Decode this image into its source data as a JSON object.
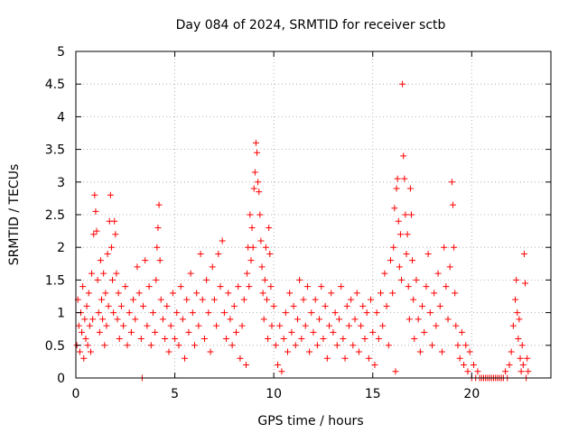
{
  "chart_data": {
    "type": "scatter",
    "title": "Day 084 of 2024, SRMTID for receiver sctb",
    "xlabel": "GPS time / hours",
    "ylabel": "SRMTID / TECUs",
    "xlim": [
      0,
      24
    ],
    "ylim": [
      0,
      5
    ],
    "xticks": [
      0,
      5,
      10,
      15,
      20
    ],
    "yticks": [
      0,
      0.5,
      1,
      1.5,
      2,
      2.5,
      3,
      3.5,
      4,
      4.5,
      5
    ],
    "xtick_labels": [
      "0",
      "5",
      "10",
      "15",
      "20"
    ],
    "ytick_labels": [
      "0",
      "0.5",
      "1",
      "1.5",
      "2",
      "2.5",
      "3",
      "3.5",
      "4",
      "4.5",
      "5"
    ],
    "grid": true,
    "marker": "plus",
    "color": "#ff0000",
    "series": [
      {
        "name": "SRMTID",
        "points": [
          [
            0.05,
            0.5
          ],
          [
            0.1,
            1.2
          ],
          [
            0.15,
            0.8
          ],
          [
            0.2,
            0.4
          ],
          [
            0.25,
            1.0
          ],
          [
            0.3,
            0.7
          ],
          [
            0.35,
            1.4
          ],
          [
            0.4,
            0.3
          ],
          [
            0.45,
            0.9
          ],
          [
            0.5,
            0.6
          ],
          [
            0.55,
            1.1
          ],
          [
            0.6,
            0.5
          ],
          [
            0.65,
            1.3
          ],
          [
            0.7,
            0.8
          ],
          [
            0.75,
            0.4
          ],
          [
            0.8,
            1.6
          ],
          [
            0.85,
            0.9
          ],
          [
            0.9,
            2.2
          ],
          [
            0.95,
            2.8
          ],
          [
            1.0,
            2.55
          ],
          [
            1.05,
            2.25
          ],
          [
            1.1,
            1.5
          ],
          [
            1.15,
            1.0
          ],
          [
            1.2,
            0.7
          ],
          [
            1.25,
            1.8
          ],
          [
            1.3,
            1.2
          ],
          [
            1.35,
            0.9
          ],
          [
            1.4,
            1.6
          ],
          [
            1.45,
            0.5
          ],
          [
            1.5,
            1.3
          ],
          [
            1.55,
            0.8
          ],
          [
            1.6,
            1.9
          ],
          [
            1.65,
            1.1
          ],
          [
            1.7,
            2.4
          ],
          [
            1.75,
            2.8
          ],
          [
            1.8,
            2.0
          ],
          [
            1.85,
            1.5
          ],
          [
            1.9,
            1.0
          ],
          [
            1.95,
            2.4
          ],
          [
            2.0,
            2.2
          ],
          [
            2.05,
            1.6
          ],
          [
            2.1,
            0.9
          ],
          [
            2.15,
            1.3
          ],
          [
            2.2,
            0.6
          ],
          [
            2.3,
            1.1
          ],
          [
            2.4,
            0.8
          ],
          [
            2.5,
            1.4
          ],
          [
            2.6,
            0.5
          ],
          [
            2.7,
            1.0
          ],
          [
            2.8,
            0.7
          ],
          [
            2.9,
            1.2
          ],
          [
            3.0,
            0.9
          ],
          [
            3.1,
            1.7
          ],
          [
            3.2,
            1.3
          ],
          [
            3.3,
            0.6
          ],
          [
            3.35,
            0.0
          ],
          [
            3.4,
            1.1
          ],
          [
            3.5,
            1.8
          ],
          [
            3.6,
            0.8
          ],
          [
            3.7,
            1.4
          ],
          [
            3.8,
            0.5
          ],
          [
            3.9,
            1.0
          ],
          [
            4.0,
            0.7
          ],
          [
            4.05,
            1.5
          ],
          [
            4.1,
            2.0
          ],
          [
            4.15,
            2.3
          ],
          [
            4.2,
            2.65
          ],
          [
            4.25,
            1.8
          ],
          [
            4.3,
            1.2
          ],
          [
            4.4,
            0.9
          ],
          [
            4.5,
            0.6
          ],
          [
            4.6,
            1.1
          ],
          [
            4.7,
            0.4
          ],
          [
            4.8,
            0.8
          ],
          [
            4.9,
            1.3
          ],
          [
            5.0,
            0.6
          ],
          [
            5.1,
            1.0
          ],
          [
            5.2,
            0.5
          ],
          [
            5.3,
            1.4
          ],
          [
            5.4,
            0.9
          ],
          [
            5.5,
            0.3
          ],
          [
            5.6,
            1.2
          ],
          [
            5.7,
            0.7
          ],
          [
            5.8,
            1.6
          ],
          [
            5.9,
            1.0
          ],
          [
            6.0,
            0.5
          ],
          [
            6.1,
            1.3
          ],
          [
            6.2,
            0.8
          ],
          [
            6.3,
            1.9
          ],
          [
            6.4,
            1.2
          ],
          [
            6.5,
            0.6
          ],
          [
            6.6,
            1.5
          ],
          [
            6.7,
            1.0
          ],
          [
            6.8,
            0.4
          ],
          [
            6.9,
            1.7
          ],
          [
            7.0,
            1.2
          ],
          [
            7.1,
            0.8
          ],
          [
            7.2,
            1.9
          ],
          [
            7.3,
            1.4
          ],
          [
            7.4,
            2.1
          ],
          [
            7.5,
            1.0
          ],
          [
            7.6,
            0.6
          ],
          [
            7.7,
            1.3
          ],
          [
            7.8,
            0.9
          ],
          [
            7.9,
            0.5
          ],
          [
            8.0,
            1.1
          ],
          [
            8.1,
            0.7
          ],
          [
            8.2,
            1.4
          ],
          [
            8.3,
            0.3
          ],
          [
            8.4,
            0.8
          ],
          [
            8.5,
            1.2
          ],
          [
            8.6,
            0.2
          ],
          [
            8.65,
            1.6
          ],
          [
            8.7,
            2.0
          ],
          [
            8.75,
            1.4
          ],
          [
            8.8,
            2.5
          ],
          [
            8.85,
            1.8
          ],
          [
            8.9,
            2.3
          ],
          [
            8.95,
            2.0
          ],
          [
            9.0,
            2.9
          ],
          [
            9.05,
            3.15
          ],
          [
            9.1,
            3.6
          ],
          [
            9.15,
            3.45
          ],
          [
            9.2,
            3.0
          ],
          [
            9.25,
            2.85
          ],
          [
            9.3,
            2.5
          ],
          [
            9.35,
            2.1
          ],
          [
            9.4,
            1.7
          ],
          [
            9.45,
            1.3
          ],
          [
            9.5,
            0.9
          ],
          [
            9.55,
            1.5
          ],
          [
            9.6,
            2.0
          ],
          [
            9.65,
            1.2
          ],
          [
            9.7,
            0.6
          ],
          [
            9.75,
            2.3
          ],
          [
            9.8,
            1.9
          ],
          [
            9.85,
            1.4
          ],
          [
            9.9,
            0.8
          ],
          [
            10.0,
            1.1
          ],
          [
            10.1,
            0.5
          ],
          [
            10.2,
            0.2
          ],
          [
            10.3,
            0.8
          ],
          [
            10.4,
            0.1
          ],
          [
            10.5,
            0.6
          ],
          [
            10.6,
            1.0
          ],
          [
            10.7,
            0.4
          ],
          [
            10.8,
            1.3
          ],
          [
            10.9,
            0.7
          ],
          [
            11.0,
            1.1
          ],
          [
            11.1,
            0.5
          ],
          [
            11.2,
            0.9
          ],
          [
            11.3,
            1.5
          ],
          [
            11.4,
            0.6
          ],
          [
            11.5,
            1.2
          ],
          [
            11.6,
            0.8
          ],
          [
            11.7,
            1.4
          ],
          [
            11.8,
            0.4
          ],
          [
            11.9,
            1.0
          ],
          [
            12.0,
            0.7
          ],
          [
            12.1,
            1.2
          ],
          [
            12.2,
            0.5
          ],
          [
            12.3,
            0.9
          ],
          [
            12.4,
            1.4
          ],
          [
            12.5,
            0.6
          ],
          [
            12.6,
            1.1
          ],
          [
            12.7,
            0.3
          ],
          [
            12.8,
            0.8
          ],
          [
            12.9,
            1.3
          ],
          [
            13.0,
            0.7
          ],
          [
            13.1,
            1.0
          ],
          [
            13.2,
            0.5
          ],
          [
            13.3,
            0.9
          ],
          [
            13.4,
            1.4
          ],
          [
            13.5,
            0.6
          ],
          [
            13.6,
            0.3
          ],
          [
            13.7,
            1.1
          ],
          [
            13.8,
            0.8
          ],
          [
            13.9,
            1.2
          ],
          [
            14.0,
            0.5
          ],
          [
            14.1,
            0.9
          ],
          [
            14.2,
            1.3
          ],
          [
            14.3,
            0.4
          ],
          [
            14.4,
            0.8
          ],
          [
            14.5,
            1.1
          ],
          [
            14.6,
            0.6
          ],
          [
            14.7,
            1.0
          ],
          [
            14.8,
            0.3
          ],
          [
            14.9,
            1.2
          ],
          [
            15.0,
            0.7
          ],
          [
            15.1,
            0.2
          ],
          [
            15.2,
            1.0
          ],
          [
            15.3,
            0.6
          ],
          [
            15.4,
            1.3
          ],
          [
            15.5,
            0.8
          ],
          [
            15.6,
            1.6
          ],
          [
            15.7,
            1.1
          ],
          [
            15.8,
            0.5
          ],
          [
            15.9,
            1.8
          ],
          [
            16.0,
            1.3
          ],
          [
            16.05,
            2.0
          ],
          [
            16.1,
            2.6
          ],
          [
            16.15,
            0.1
          ],
          [
            16.2,
            2.9
          ],
          [
            16.25,
            3.05
          ],
          [
            16.3,
            2.4
          ],
          [
            16.35,
            1.7
          ],
          [
            16.4,
            2.2
          ],
          [
            16.45,
            1.5
          ],
          [
            16.5,
            4.5
          ],
          [
            16.55,
            3.4
          ],
          [
            16.6,
            3.05
          ],
          [
            16.65,
            2.5
          ],
          [
            16.7,
            1.9
          ],
          [
            16.75,
            2.2
          ],
          [
            16.8,
            1.4
          ],
          [
            16.85,
            0.9
          ],
          [
            16.9,
            2.9
          ],
          [
            16.95,
            2.5
          ],
          [
            17.0,
            1.8
          ],
          [
            17.05,
            1.2
          ],
          [
            17.1,
            0.6
          ],
          [
            17.2,
            1.5
          ],
          [
            17.3,
            0.9
          ],
          [
            17.4,
            0.4
          ],
          [
            17.5,
            1.1
          ],
          [
            17.6,
            0.7
          ],
          [
            17.7,
            1.4
          ],
          [
            17.8,
            1.9
          ],
          [
            17.9,
            1.0
          ],
          [
            18.0,
            0.5
          ],
          [
            18.1,
            1.3
          ],
          [
            18.2,
            0.8
          ],
          [
            18.3,
            1.6
          ],
          [
            18.4,
            1.1
          ],
          [
            18.5,
            0.4
          ],
          [
            18.6,
            2.0
          ],
          [
            18.7,
            1.4
          ],
          [
            18.8,
            0.9
          ],
          [
            18.9,
            1.7
          ],
          [
            19.0,
            3.0
          ],
          [
            19.05,
            2.65
          ],
          [
            19.1,
            2.0
          ],
          [
            19.15,
            1.3
          ],
          [
            19.2,
            0.8
          ],
          [
            19.3,
            0.5
          ],
          [
            19.4,
            0.3
          ],
          [
            19.5,
            0.7
          ],
          [
            19.6,
            0.2
          ],
          [
            19.7,
            0.5
          ],
          [
            19.8,
            0.1
          ],
          [
            19.9,
            0.4
          ],
          [
            20.0,
            0.0
          ],
          [
            20.1,
            0.2
          ],
          [
            20.2,
            0.0
          ],
          [
            20.3,
            0.1
          ],
          [
            20.4,
            0.0
          ],
          [
            20.5,
            0.0
          ],
          [
            20.6,
            0.0
          ],
          [
            20.7,
            0.0
          ],
          [
            20.8,
            0.0
          ],
          [
            20.9,
            0.0
          ],
          [
            21.0,
            0.0
          ],
          [
            21.1,
            0.0
          ],
          [
            21.2,
            0.0
          ],
          [
            21.3,
            0.0
          ],
          [
            21.4,
            0.0
          ],
          [
            21.5,
            0.0
          ],
          [
            21.6,
            0.0
          ],
          [
            21.7,
            0.1
          ],
          [
            21.8,
            0.0
          ],
          [
            21.9,
            0.2
          ],
          [
            22.0,
            0.4
          ],
          [
            22.1,
            0.8
          ],
          [
            22.2,
            1.2
          ],
          [
            22.25,
            1.5
          ],
          [
            22.3,
            1.0
          ],
          [
            22.35,
            0.6
          ],
          [
            22.4,
            0.9
          ],
          [
            22.45,
            0.3
          ],
          [
            22.5,
            0.1
          ],
          [
            22.55,
            0.5
          ],
          [
            22.6,
            0.2
          ],
          [
            22.65,
            1.9
          ],
          [
            22.7,
            1.45
          ],
          [
            22.75,
            0.0
          ],
          [
            22.8,
            0.3
          ],
          [
            22.85,
            0.1
          ]
        ]
      }
    ]
  }
}
